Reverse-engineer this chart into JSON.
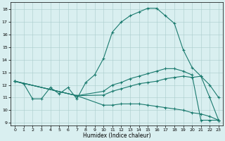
{
  "xlabel": "Humidex (Indice chaleur)",
  "xlim": [
    -0.5,
    23.5
  ],
  "ylim": [
    8.8,
    18.6
  ],
  "xticks": [
    0,
    1,
    2,
    3,
    4,
    5,
    6,
    7,
    8,
    9,
    10,
    11,
    12,
    13,
    14,
    15,
    16,
    17,
    18,
    19,
    20,
    21,
    22,
    23
  ],
  "yticks": [
    9,
    10,
    11,
    12,
    13,
    14,
    15,
    16,
    17,
    18
  ],
  "line_color": "#1a7a6e",
  "bg_color": "#d9eff0",
  "line1_x": [
    0,
    1,
    2,
    3,
    4,
    5,
    6,
    7,
    8,
    9,
    10,
    11,
    12,
    13,
    14,
    15,
    16,
    17,
    18,
    19,
    20,
    21,
    22,
    23
  ],
  "line1_y": [
    12.3,
    12.1,
    10.9,
    10.9,
    11.8,
    11.3,
    11.8,
    10.9,
    12.2,
    12.8,
    14.1,
    16.2,
    17.0,
    17.5,
    17.8,
    18.1,
    18.1,
    17.5,
    16.9,
    14.8,
    13.4,
    12.7,
    12.0,
    11.0
  ],
  "line2_x": [
    0,
    7,
    10,
    11,
    12,
    13,
    14,
    15,
    16,
    17,
    18,
    19,
    20,
    21,
    22,
    23
  ],
  "line2_y": [
    12.3,
    11.15,
    11.5,
    12.0,
    12.2,
    12.5,
    12.7,
    12.9,
    13.1,
    13.3,
    13.3,
    13.1,
    12.8,
    9.2,
    9.2,
    9.2
  ],
  "line3_x": [
    0,
    7,
    10,
    11,
    12,
    13,
    14,
    15,
    16,
    17,
    18,
    19,
    20,
    21,
    22,
    23
  ],
  "line3_y": [
    12.3,
    11.15,
    11.2,
    11.5,
    11.7,
    11.9,
    12.1,
    12.2,
    12.3,
    12.5,
    12.6,
    12.7,
    12.6,
    12.7,
    11.0,
    9.2
  ],
  "line4_x": [
    0,
    7,
    10,
    11,
    12,
    13,
    14,
    15,
    16,
    17,
    18,
    19,
    20,
    21,
    22,
    23
  ],
  "line4_y": [
    12.3,
    11.15,
    10.4,
    10.4,
    10.5,
    10.5,
    10.5,
    10.4,
    10.3,
    10.2,
    10.1,
    10.0,
    9.8,
    9.7,
    9.5,
    9.2
  ]
}
